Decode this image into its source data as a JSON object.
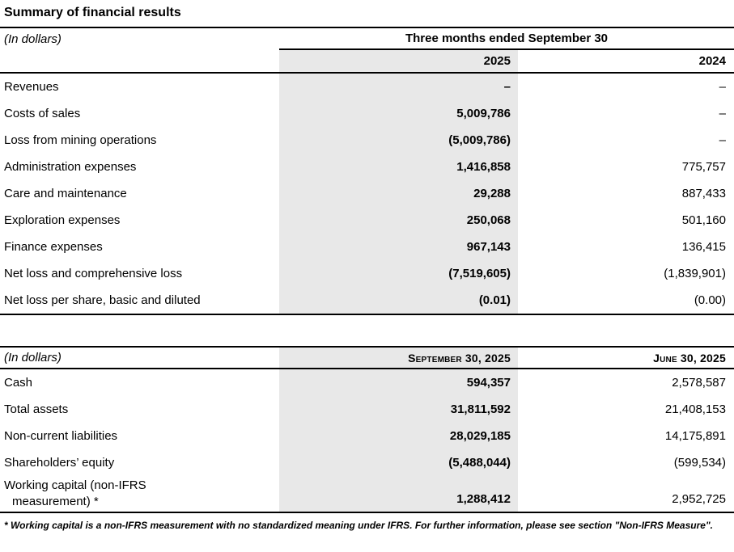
{
  "page": {
    "title": "Summary of financial results"
  },
  "colors": {
    "highlight_column": "#e8e8e8",
    "border": "#000000",
    "text": "#000000",
    "background": "#ffffff"
  },
  "table1": {
    "unit_label": "(In dollars)",
    "period_header": "Three months ended September 30",
    "col_headers": [
      "2025",
      "2024"
    ],
    "rows": [
      {
        "label": "Revenues",
        "v2025": "–",
        "v2024": "–"
      },
      {
        "label": "Costs of sales",
        "v2025": "5,009,786",
        "v2024": "–"
      },
      {
        "label": "Loss from mining operations",
        "v2025": "(5,009,786)",
        "v2024": "–"
      },
      {
        "label": "Administration expenses",
        "v2025": "1,416,858",
        "v2024": "775,757"
      },
      {
        "label": "Care and maintenance",
        "v2025": "29,288",
        "v2024": "887,433"
      },
      {
        "label": "Exploration expenses",
        "v2025": "250,068",
        "v2024": "501,160"
      },
      {
        "label": "Finance expenses",
        "v2025": "967,143",
        "v2024": "136,415"
      },
      {
        "label": "Net loss and comprehensive loss",
        "v2025": "(7,519,605)",
        "v2024": "(1,839,901)"
      },
      {
        "label": "Net loss per share, basic and diluted",
        "v2025": "(0.01)",
        "v2024": "(0.00)"
      }
    ]
  },
  "table2": {
    "unit_label": "(In dollars)",
    "col_headers": [
      "September 30, 2025",
      "June 30, 2025"
    ],
    "rows": [
      {
        "label": "Cash",
        "current": "594,357",
        "prior": "2,578,587"
      },
      {
        "label": "Total assets",
        "current": "31,811,592",
        "prior": "21,408,153"
      },
      {
        "label": "Non-current liabilities",
        "current": "28,029,185",
        "prior": "14,175,891"
      },
      {
        "label": "Shareholders’ equity",
        "current": "(5,488,044)",
        "prior": "(599,534)"
      }
    ],
    "working_capital_row": {
      "label_line1": "Working capital (non-IFRS",
      "label_line2": "measurement) *",
      "current": "1,288,412",
      "prior": "2,952,725"
    }
  },
  "footnote": "* Working capital is a non-IFRS measurement with no standardized meaning under IFRS. For further information, please see section \"Non-IFRS Measure\"."
}
